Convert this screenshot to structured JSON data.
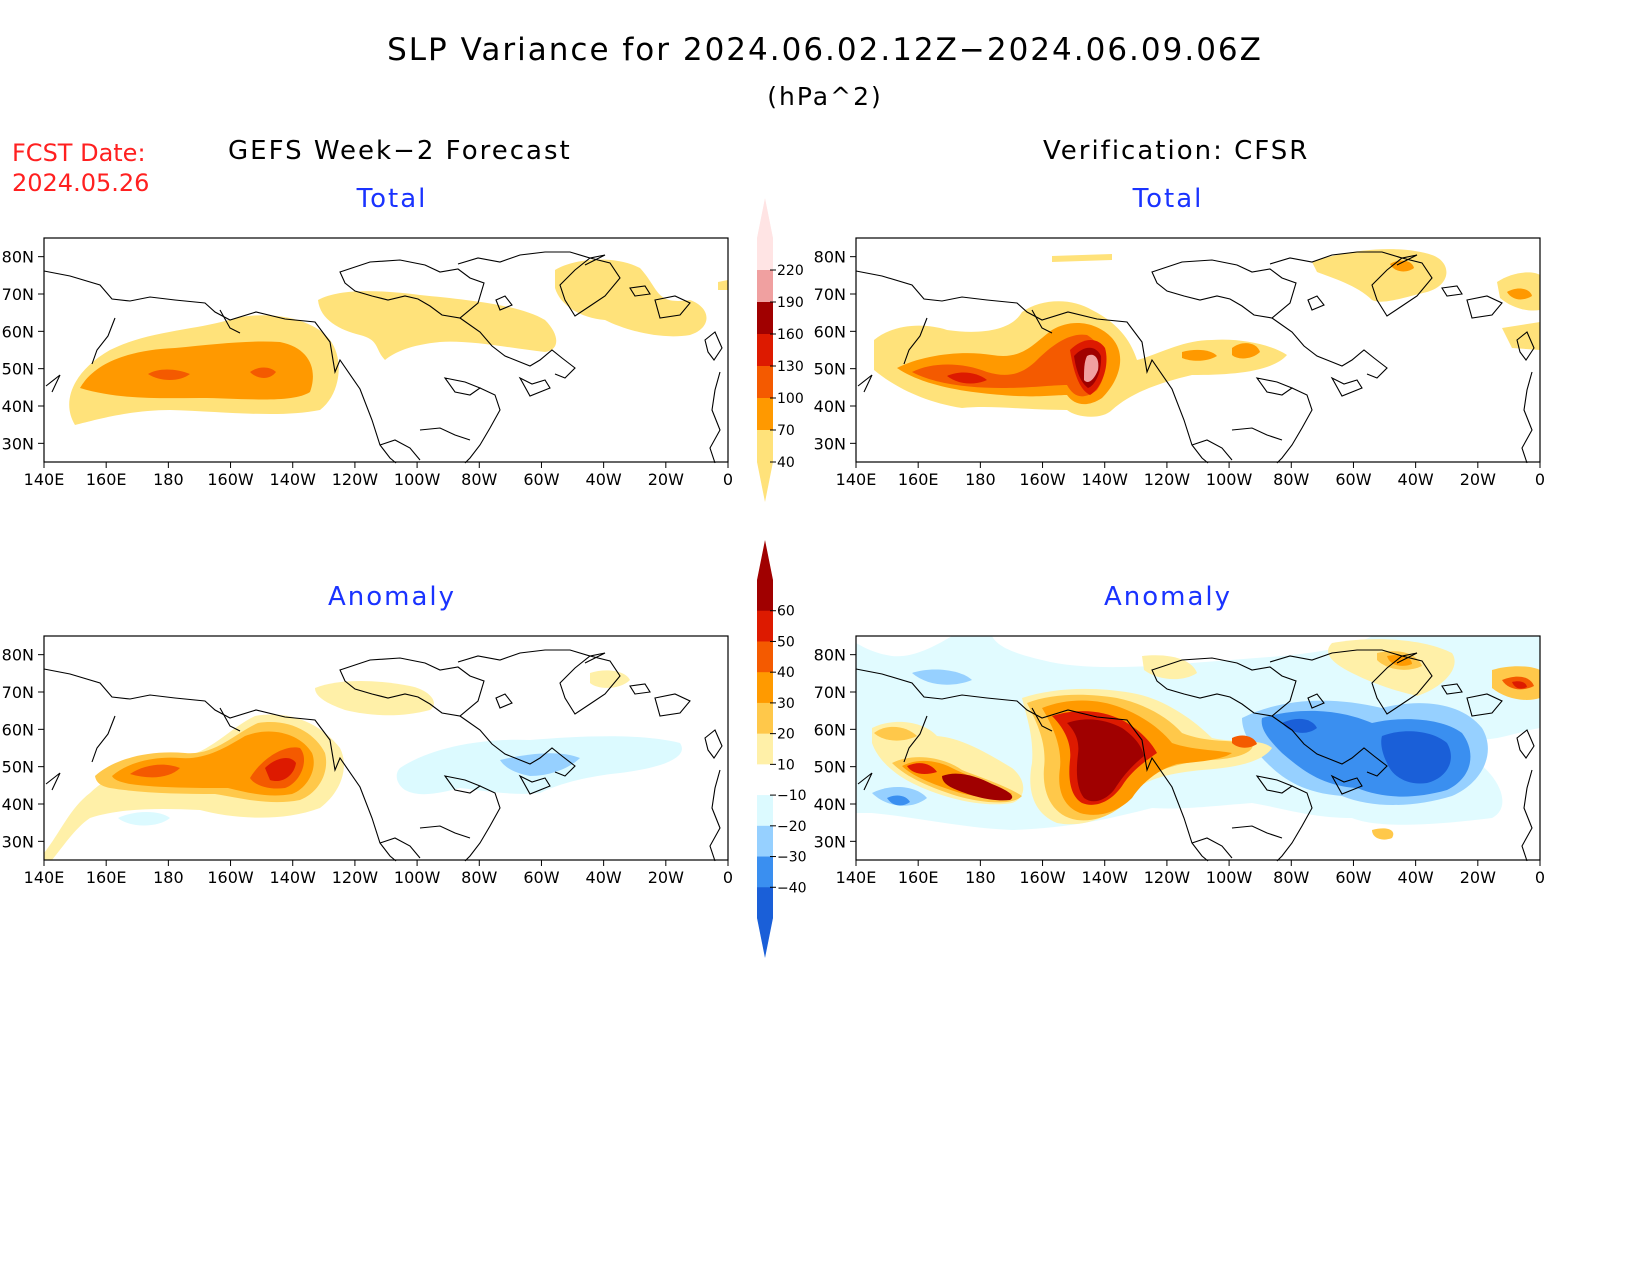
{
  "header": {
    "title": "SLP Variance for 2024.06.02.12Z−2024.06.09.06Z",
    "units": "(hPa^2)",
    "fcst_label": "FCST Date:",
    "fcst_date": "2024.05.26"
  },
  "columns": {
    "left": "GEFS Week−2 Forecast",
    "right": "Verification: CFSR"
  },
  "panels": {
    "forecast_total": {
      "title": "Total"
    },
    "forecast_anomaly": {
      "title": "Anomaly"
    },
    "verification_total": {
      "title": "Total"
    },
    "verification_anomaly": {
      "title": "Anomaly"
    }
  },
  "axes": {
    "lon_labels": [
      "140E",
      "160E",
      "180",
      "160W",
      "140W",
      "120W",
      "100W",
      "80W",
      "60W",
      "40W",
      "20W",
      "0"
    ],
    "lat_labels": [
      "80N",
      "70N",
      "60N",
      "50N",
      "40N",
      "30N"
    ],
    "lon_range": [
      140,
      360
    ],
    "lat_range": [
      25,
      85
    ]
  },
  "colorbars": {
    "total": {
      "levels": [
        "220",
        "190",
        "160",
        "130",
        "100",
        "70",
        "40"
      ],
      "colors": [
        "#ffe4e4",
        "#f0a0a0",
        "#a00000",
        "#dd1a00",
        "#f45a00",
        "#ff9900",
        "#ffe27a"
      ]
    },
    "anomaly": {
      "levels": [
        "60",
        "50",
        "40",
        "30",
        "20",
        "10",
        "−10",
        "−20",
        "−30",
        "−40"
      ],
      "colors": [
        "#a00000",
        "#dd1a00",
        "#f45a00",
        "#ff9a00",
        "#ffc84a",
        "#fff0a8",
        "#ffffff",
        "#dcfaff",
        "#96d0ff",
        "#3a8ff0",
        "#1a5fd8"
      ]
    }
  }
}
